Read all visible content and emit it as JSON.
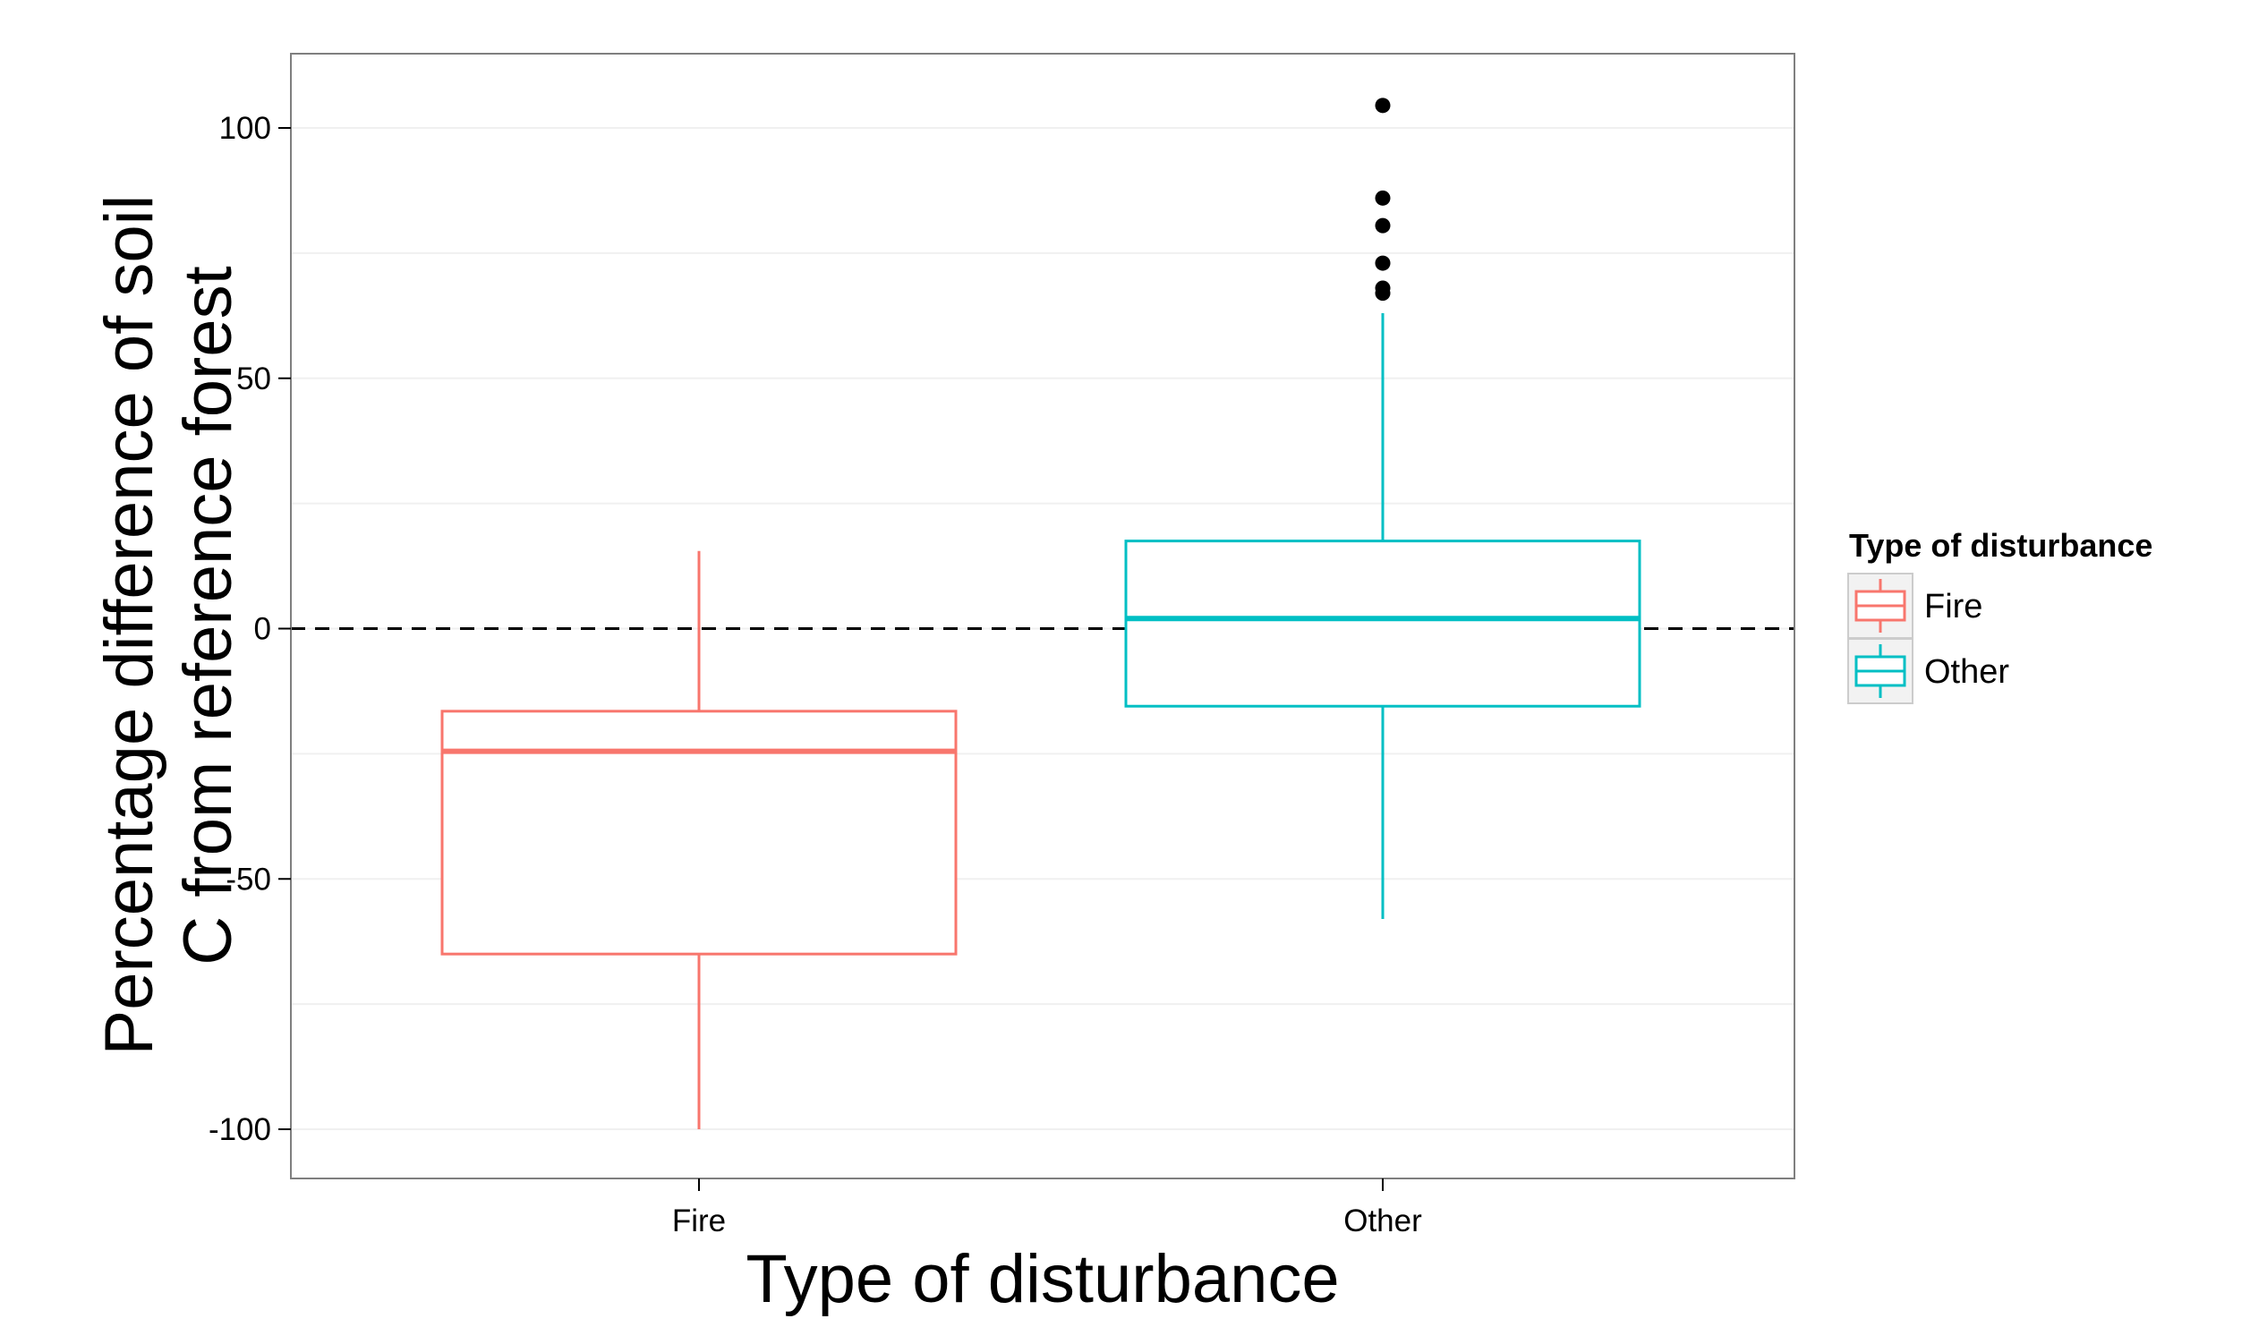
{
  "chart_data": {
    "type": "box",
    "title": "",
    "xlabel": "Type of disturbance",
    "ylabel_lines": [
      "Percentage difference of soil",
      "C from reference forest"
    ],
    "ylim": [
      -110,
      115
    ],
    "yticks": [
      -100,
      -50,
      0,
      50,
      100
    ],
    "ytick_labels": [
      "-100",
      "-50",
      "0",
      "50",
      "100"
    ],
    "categories": [
      "Fire",
      "Other"
    ],
    "reference_line": {
      "y": 0,
      "style": "dashed"
    },
    "grid": true,
    "legend": {
      "title": "Type of disturbance",
      "placement": "right",
      "entries": [
        "Fire",
        "Other"
      ]
    },
    "colors": {
      "Fire": "#F8766D",
      "Other": "#00BFC4",
      "outlier": "#000000"
    },
    "series": [
      {
        "name": "Fire",
        "whisker_low": -100,
        "q1": -65,
        "median": -24.5,
        "q3": -16.5,
        "whisker_high": 15.5,
        "outliers": []
      },
      {
        "name": "Other",
        "whisker_low": -58,
        "q1": -15.5,
        "median": 2,
        "q3": 17.5,
        "whisker_high": 63,
        "outliers": [
          104.5,
          86,
          80.5,
          73,
          68,
          67
        ]
      }
    ]
  }
}
